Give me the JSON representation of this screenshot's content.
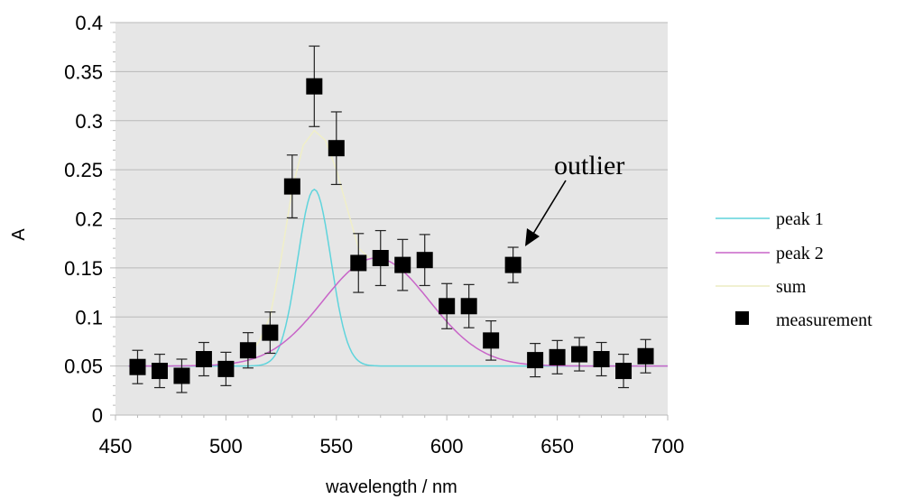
{
  "chart_data": {
    "type": "scatter",
    "xlabel": "wavelength / nm",
    "ylabel": "A",
    "xlim": [
      450,
      700
    ],
    "ylim": [
      0,
      0.4
    ],
    "x_ticks": [
      450,
      500,
      550,
      600,
      650,
      700
    ],
    "y_ticks": [
      "0",
      "0.05",
      "0.1",
      "0.15",
      "0.2",
      "0.25",
      "0.3",
      "0.35",
      "0.4"
    ],
    "grid": "horizontal",
    "legend_position": "right",
    "plot_background": "#e6e6e6",
    "series": [
      {
        "name": "peak 1",
        "kind": "line",
        "color": "#5fd4dc",
        "model": {
          "baseline": 0.05,
          "amplitude": 0.18,
          "center": 540,
          "sigma": 7.5
        }
      },
      {
        "name": "peak 2",
        "kind": "line",
        "color": "#c865c8",
        "model": {
          "baseline": 0.05,
          "amplitude": 0.11,
          "center": 568,
          "sigma": 24
        }
      },
      {
        "name": "sum",
        "kind": "line",
        "color": "#f0efc8",
        "x": [
          510,
          515,
          520,
          525,
          530,
          535,
          540,
          545,
          550,
          555,
          560,
          565
        ],
        "y": [
          0.06,
          0.075,
          0.1,
          0.16,
          0.23,
          0.275,
          0.29,
          0.28,
          0.25,
          0.21,
          0.17,
          0.16
        ]
      },
      {
        "name": "measurement",
        "kind": "scatter",
        "color": "#000000",
        "x": [
          460,
          470,
          480,
          490,
          500,
          510,
          520,
          530,
          540,
          550,
          560,
          570,
          580,
          590,
          600,
          610,
          620,
          630,
          640,
          650,
          660,
          670,
          680,
          690
        ],
        "y": [
          0.049,
          0.045,
          0.04,
          0.057,
          0.047,
          0.066,
          0.084,
          0.233,
          0.335,
          0.272,
          0.155,
          0.16,
          0.153,
          0.158,
          0.111,
          0.111,
          0.076,
          0.153,
          0.056,
          0.059,
          0.062,
          0.057,
          0.045,
          0.06
        ],
        "error": [
          0.017,
          0.017,
          0.017,
          0.017,
          0.017,
          0.018,
          0.021,
          0.032,
          0.041,
          0.037,
          0.03,
          0.028,
          0.026,
          0.026,
          0.023,
          0.022,
          0.02,
          0.018,
          0.017,
          0.017,
          0.017,
          0.017,
          0.017,
          0.017
        ]
      }
    ],
    "annotations": [
      {
        "text": "outlier",
        "target_x": 630,
        "target_y": 0.153
      }
    ]
  }
}
